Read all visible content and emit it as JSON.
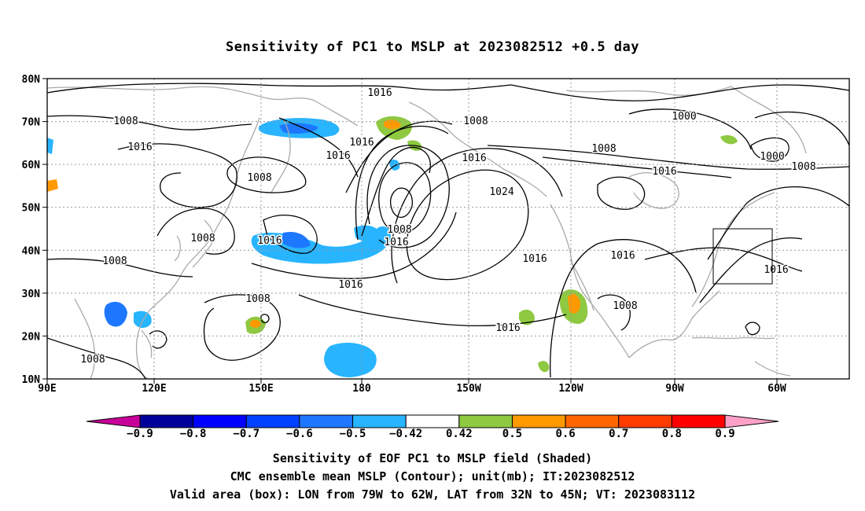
{
  "title": "Sensitivity of PC1 to MSLP at 2023082512 +0.5 day",
  "map": {
    "lat_labels": [
      "80N",
      "70N",
      "60N",
      "50N",
      "40N",
      "30N",
      "20N",
      "10N"
    ],
    "lon_labels": [
      "90E",
      "120E",
      "150E",
      "180",
      "150W",
      "120W",
      "90W",
      "60W"
    ],
    "valid_box": {
      "lon_from": "79W",
      "lon_to": "62W",
      "lat_from": "32N",
      "lat_to": "45N"
    },
    "contour_labels": [
      "1016",
      "1008",
      "1016",
      "1008",
      "1016",
      "1016",
      "1008",
      "1000",
      "1008",
      "1016",
      "1000",
      "1008",
      "1016",
      "1024",
      "1008",
      "1016",
      "1008",
      "1008",
      "1016",
      "1016",
      "1016",
      "1008",
      "1008",
      "1016",
      "1008",
      "1016",
      "1016"
    ],
    "colors": {
      "contour": "#000000",
      "coast": "#aaaaaa",
      "grid": "#999999"
    }
  },
  "colorbar": {
    "labels": [
      "-0.9",
      "-0.8",
      "-0.7",
      "-0.6",
      "-0.5",
      "-0.42",
      "0.42",
      "0.5",
      "0.6",
      "0.7",
      "0.8",
      "0.9"
    ],
    "colors": [
      "#00009a",
      "#0000ff",
      "#0040ff",
      "#1e78ff",
      "#28b4ff",
      "#ffffff",
      "#8fc841",
      "#ff9900",
      "#ff6600",
      "#ff3c00",
      "#ff0000"
    ],
    "left_tip": "#c8009a",
    "right_tip": "#ffa0c8"
  },
  "caption": {
    "line1": "Sensitivity of EOF PC1 to MSLP field (Shaded)",
    "line2": "CMC ensemble mean MSLP (Contour); unit(mb); IT:2023082512",
    "line3": "Valid area (box): LON from 79W to 62W, LAT from 32N to 45N; VT: 2023083112"
  }
}
